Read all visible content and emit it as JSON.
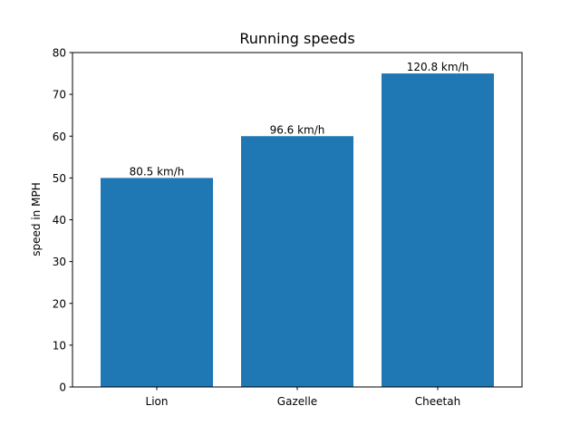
{
  "chart_data": {
    "type": "bar",
    "title": "Running speeds",
    "xlabel": "",
    "ylabel": "speed in MPH",
    "categories": [
      "Lion",
      "Gazelle",
      "Cheetah"
    ],
    "values": [
      50,
      60,
      75
    ],
    "bar_labels": [
      "80.5 km/h",
      "96.6 km/h",
      "120.8 km/h"
    ],
    "ylim": [
      0,
      80
    ],
    "yticks": [
      0,
      10,
      20,
      30,
      40,
      50,
      60,
      70,
      80
    ],
    "bar_color": "#1f77b4",
    "grid": false,
    "legend": null
  }
}
